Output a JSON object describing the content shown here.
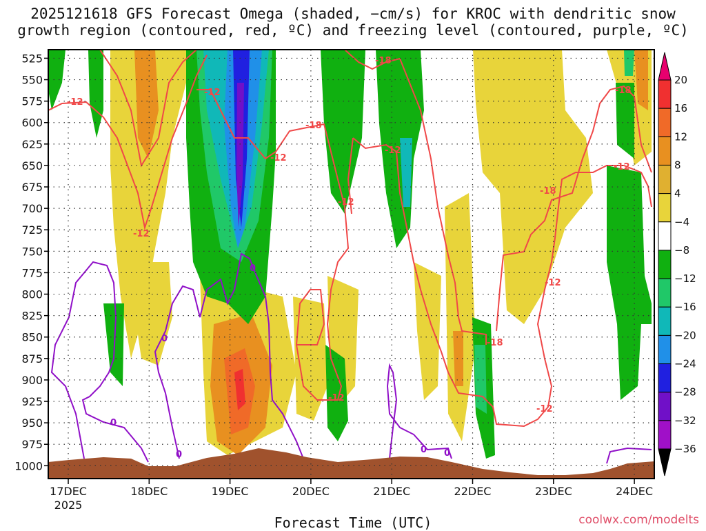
{
  "chart_data": {
    "type": "heatmap",
    "title_line1": "2025121618 GFS Forecast Omega (shaded, −cm/s) for KROC with dendritic snow",
    "title_line2": "growth region (contoured, red, ºC) and freezing level (contoured, purple, ºC)",
    "xlabel": "Forecast Time (UTC)",
    "ylabel": "",
    "x_ticks": [
      "17DEC",
      "18DEC",
      "19DEC",
      "20DEC",
      "21DEC",
      "22DEC",
      "23DEC",
      "24DEC"
    ],
    "x_year": "2025",
    "y_ticks": [
      "525",
      "550",
      "575",
      "600",
      "625",
      "650",
      "675",
      "700",
      "725",
      "750",
      "775",
      "800",
      "825",
      "850",
      "875",
      "900",
      "925",
      "950",
      "975",
      "1000"
    ],
    "y_range": [
      515,
      1015
    ],
    "colorbar": {
      "labels": [
        "20",
        "16",
        "12",
        "8",
        "4",
        "−4",
        "−8",
        "−12",
        "−16",
        "−20",
        "−24",
        "−28",
        "−32",
        "−36"
      ],
      "colors": [
        "#e8006e",
        "#f03030",
        "#f06a28",
        "#e89020",
        "#e0b030",
        "#e8d43a",
        "#ffffff",
        "#10b010",
        "#20c868",
        "#10b8b8",
        "#2090e8",
        "#2020e0",
        "#7010c8",
        "#a010c8",
        "#a8a8a8",
        "#000000"
      ]
    },
    "red_contour_labels": [
      "-12",
      "-12",
      "-12",
      "-12",
      "-12",
      "-12",
      "-12",
      "-12",
      "-12",
      "-12",
      "-18",
      "-18",
      "-18",
      "-18",
      "-18"
    ],
    "purple_contour_labels": [
      "0",
      "0",
      "0",
      "0",
      "0",
      "0"
    ],
    "terrain_color": "#a0522d",
    "red_contour_color": "#f04848",
    "purple_contour_color": "#9010c8"
  },
  "watermark": "coolwx.com/modelts"
}
